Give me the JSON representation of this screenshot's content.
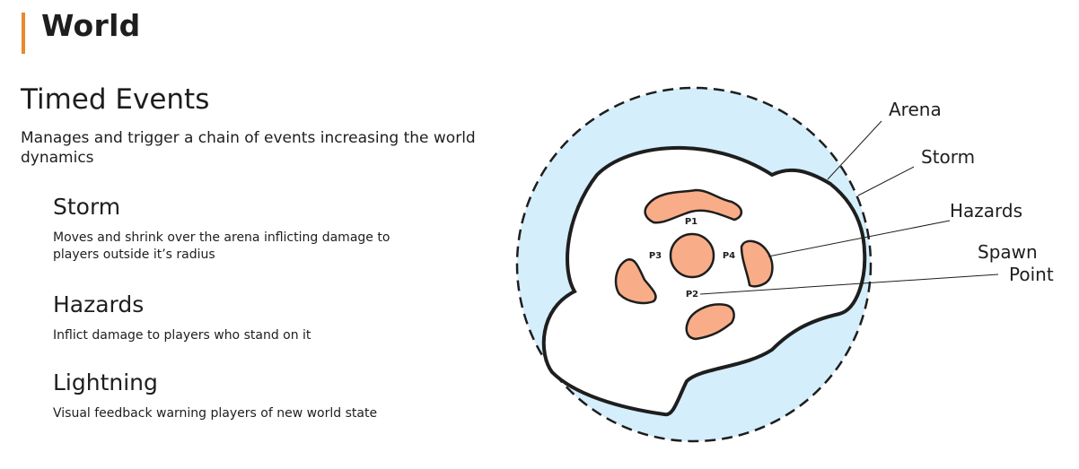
{
  "header": {
    "title": "World"
  },
  "section": {
    "title": "Timed Events",
    "description": "Manages and trigger a chain of events increasing the world dynamics"
  },
  "events": [
    {
      "title": "Storm",
      "description": "Moves and shrink over the arena inflicting damage to players outside it’s radius"
    },
    {
      "title": "Hazards",
      "description": "Inflict damage to players who stand on it"
    },
    {
      "title": "Lightning",
      "description": "Visual feedback warning players of new world state"
    }
  ],
  "diagram": {
    "labels": {
      "arena": "Arena",
      "storm": "Storm",
      "hazards": "Hazards",
      "spawn_line1": "Spawn",
      "spawn_line2": "Point"
    },
    "spawn_points": [
      "P1",
      "P2",
      "P3",
      "P4"
    ],
    "colors": {
      "accent": "#e8892f",
      "storm_fill": "#d4eefb",
      "hazard_fill": "#f8ad88",
      "outline": "#1e1e1e"
    }
  }
}
